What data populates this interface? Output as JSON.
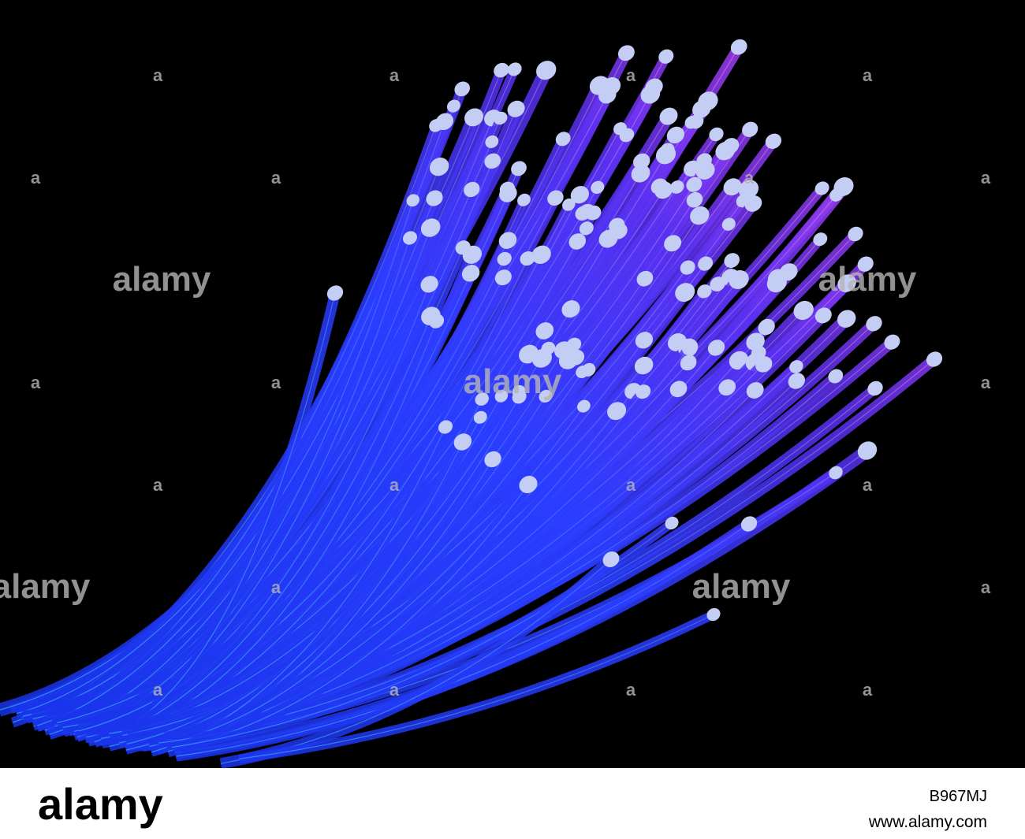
{
  "watermark": {
    "logo": "alamy",
    "mark": "a"
  },
  "footer": {
    "logo": "alamy",
    "id": "B967MJ",
    "url": "www.alamy.com"
  }
}
